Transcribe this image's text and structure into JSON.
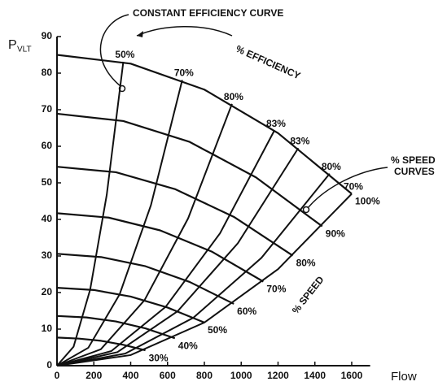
{
  "chart_data": {
    "type": "line",
    "y_label": "P",
    "y_label_sub": "VLT",
    "x_label": "Flow",
    "annotations": [
      "CONSTANT EFFICIENCY CURVE",
      "% EFFICIENCY",
      "% SPEED",
      "CURVES",
      "% SPEED"
    ],
    "xlim": [
      0,
      1700
    ],
    "xticks": [
      0,
      200,
      400,
      600,
      800,
      1000,
      1200,
      1400,
      1600
    ],
    "ylim": [
      0,
      90
    ],
    "yticks": [
      0,
      10,
      20,
      30,
      40,
      50,
      60,
      70,
      80,
      90
    ],
    "color": "#111111",
    "series": [
      {
        "name": "100%",
        "x": [
          0,
          400,
          800,
          1200,
          1600
        ],
        "values": [
          85,
          82.6,
          75.5,
          63.6,
          47
        ]
      },
      {
        "name": "90%",
        "x": [
          0,
          360,
          720,
          1080,
          1440
        ],
        "values": [
          68.9,
          66.9,
          61.2,
          51.5,
          38.1
        ]
      },
      {
        "name": "80%",
        "x": [
          0,
          320,
          640,
          960,
          1280
        ],
        "values": [
          54.4,
          52.9,
          48.3,
          40.7,
          30.1
        ]
      },
      {
        "name": "70%",
        "x": [
          0,
          280,
          560,
          840,
          1120
        ],
        "values": [
          41.7,
          40.5,
          37.0,
          31.2,
          23.0
        ]
      },
      {
        "name": "60%",
        "x": [
          0,
          240,
          480,
          720,
          960
        ],
        "values": [
          30.6,
          29.7,
          27.2,
          22.9,
          16.9
        ]
      },
      {
        "name": "50%",
        "x": [
          0,
          200,
          400,
          600,
          800
        ],
        "values": [
          21.3,
          20.7,
          18.9,
          15.9,
          11.8
        ]
      },
      {
        "name": "40%",
        "x": [
          0,
          160,
          320,
          480,
          640
        ],
        "values": [
          13.6,
          13.2,
          12.1,
          10.2,
          7.5
        ]
      },
      {
        "name": "30%",
        "x": [
          0,
          120,
          240,
          360,
          480
        ],
        "values": [
          7.7,
          7.4,
          6.8,
          5.7,
          4.2
        ]
      }
    ],
    "efficiency_curves": [
      {
        "name": "50%",
        "x": [
          360,
          270,
          180,
          90,
          0
        ],
        "values": [
          83.1,
          46.7,
          20.8,
          5.2,
          0
        ]
      },
      {
        "name": "70%",
        "x": [
          680,
          510,
          340,
          170,
          0
        ],
        "values": [
          78.1,
          43.9,
          19.5,
          4.9,
          0
        ]
      },
      {
        "name": "80%",
        "x": [
          950,
          712,
          475,
          238,
          0
        ],
        "values": [
          71.6,
          40.3,
          17.9,
          4.5,
          0
        ]
      },
      {
        "name": "83%",
        "x": [
          1180,
          885,
          590,
          295,
          0
        ],
        "values": [
          64.3,
          36.2,
          16.1,
          4.0,
          0
        ]
      },
      {
        "name": "83%",
        "x": [
          1310,
          982,
          655,
          328,
          0
        ],
        "values": [
          59.5,
          33.5,
          14.9,
          3.7,
          0
        ]
      },
      {
        "name": "80%",
        "x": [
          1480,
          1110,
          740,
          370,
          0
        ],
        "values": [
          52.5,
          29.5,
          13.1,
          3.3,
          0
        ]
      },
      {
        "name": "70%",
        "x": [
          1600,
          1200,
          800,
          400,
          0
        ],
        "values": [
          47,
          26.4,
          11.8,
          2.9,
          0
        ]
      }
    ]
  }
}
